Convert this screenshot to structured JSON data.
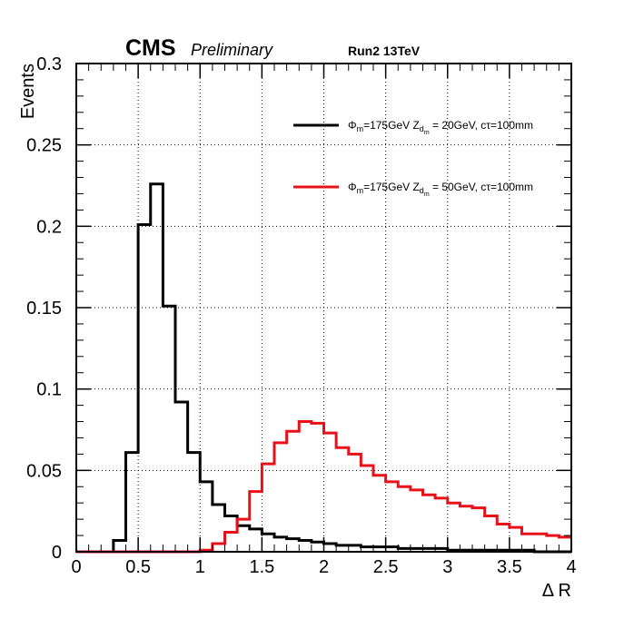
{
  "chart_data": {
    "type": "line",
    "style": "step-histogram",
    "xlabel": "Δ R",
    "ylabel": "Events",
    "xlim": [
      0,
      4
    ],
    "ylim": [
      0,
      0.3
    ],
    "x_ticks": [
      "0",
      "0.5",
      "1",
      "1.5",
      "2",
      "2.5",
      "3",
      "3.5",
      "4"
    ],
    "y_ticks": [
      "0",
      "0.05",
      "0.1",
      "0.15",
      "0.2",
      "0.25",
      "0.3"
    ],
    "grid": true,
    "legend_position": "top-right",
    "bin_edges": [
      0,
      0.1,
      0.2,
      0.3,
      0.4,
      0.5,
      0.6,
      0.7,
      0.8,
      0.9,
      1.0,
      1.1,
      1.2,
      1.3,
      1.4,
      1.5,
      1.6,
      1.7,
      1.8,
      1.9,
      2.0,
      2.1,
      2.2,
      2.3,
      2.4,
      2.5,
      2.6,
      2.7,
      2.8,
      2.9,
      3.0,
      3.1,
      3.2,
      3.3,
      3.4,
      3.5,
      3.6,
      3.7,
      3.8,
      3.9,
      4.0
    ],
    "series": [
      {
        "name_parts": [
          "Φ",
          "m",
          "=175GeV Z",
          "d",
          "m",
          " = 20GeV, cτ=100mm"
        ],
        "color": "#000000",
        "values": [
          0.0,
          0.0,
          0.0,
          0.007,
          0.061,
          0.201,
          0.226,
          0.151,
          0.092,
          0.061,
          0.043,
          0.029,
          0.022,
          0.016,
          0.014,
          0.011,
          0.009,
          0.008,
          0.007,
          0.006,
          0.005,
          0.004,
          0.004,
          0.003,
          0.003,
          0.003,
          0.002,
          0.002,
          0.002,
          0.002,
          0.001,
          0.001,
          0.001,
          0.001,
          0.001,
          0.001,
          0.001,
          0.0,
          0.0,
          0.0
        ]
      },
      {
        "name_parts": [
          "Φ",
          "m",
          "=175GeV Z",
          "d",
          "m",
          " = 50GeV, cτ=100mm"
        ],
        "color": "#e8111a",
        "values": [
          0.0,
          0.0,
          0.0,
          0.0,
          0.0,
          0.0,
          0.0,
          0.0,
          0.0,
          0.0,
          0.001,
          0.005,
          0.012,
          0.02,
          0.037,
          0.054,
          0.067,
          0.074,
          0.08,
          0.079,
          0.073,
          0.064,
          0.06,
          0.053,
          0.047,
          0.043,
          0.04,
          0.038,
          0.035,
          0.033,
          0.03,
          0.028,
          0.027,
          0.022,
          0.017,
          0.015,
          0.011,
          0.011,
          0.01,
          0.009
        ]
      }
    ],
    "annotations": {
      "experiment": "CMS",
      "status": "Preliminary",
      "run": "Run2 13TeV"
    }
  }
}
